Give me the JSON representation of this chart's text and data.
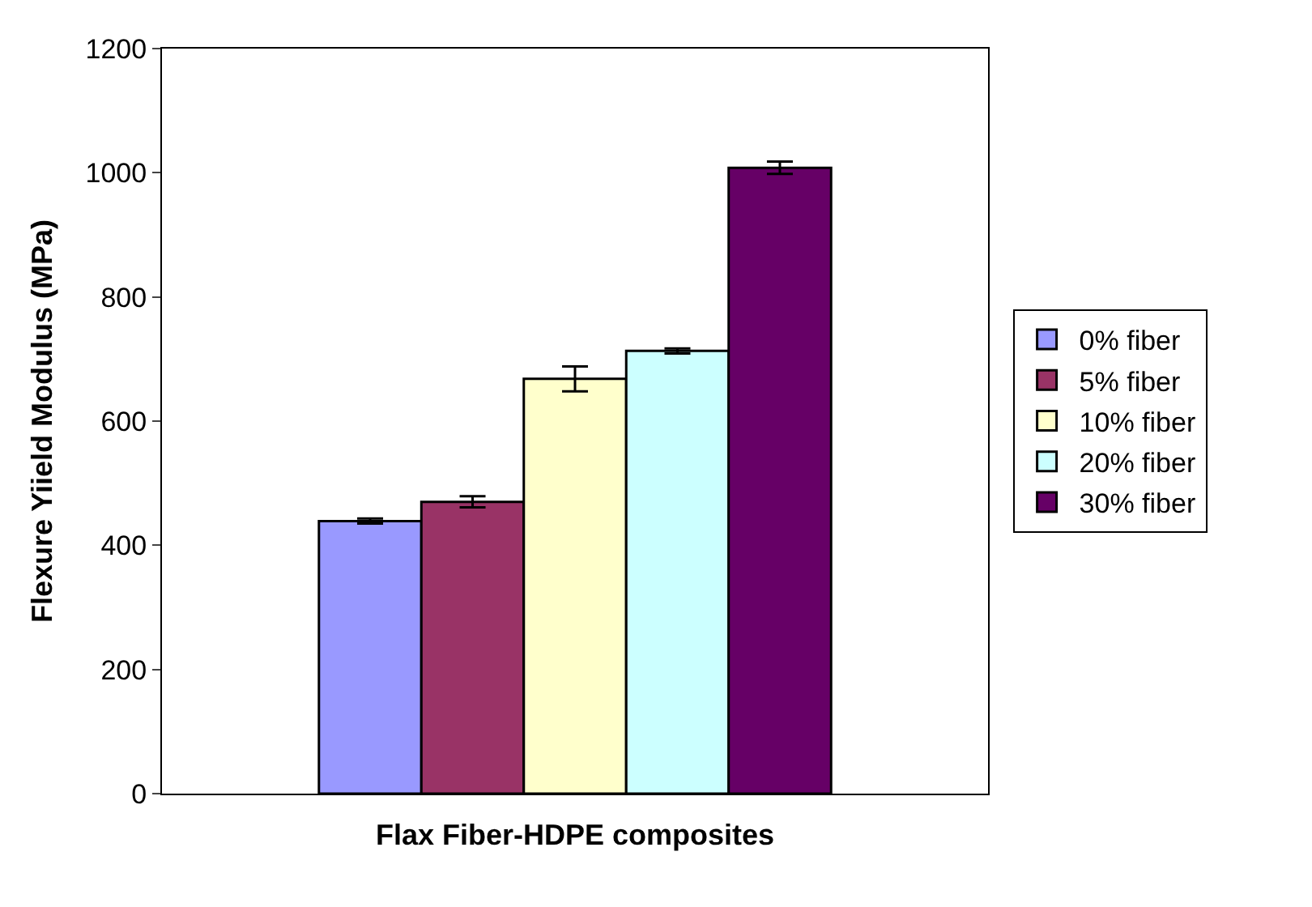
{
  "chart_data": {
    "type": "bar",
    "xlabel": "Flax Fiber-HDPE composites",
    "ylabel": "Flexure Yiield Modulus (MPa)",
    "categories": [
      null
    ],
    "series": [
      {
        "name": "0% fiber",
        "color": "#9999ff",
        "values": [
          439
        ],
        "errors": [
          4
        ]
      },
      {
        "name": "5% fiber",
        "color": "#993366",
        "values": [
          470
        ],
        "errors": [
          9
        ]
      },
      {
        "name": "10% fiber",
        "color": "#ffffcc",
        "values": [
          668
        ],
        "errors": [
          20
        ]
      },
      {
        "name": "20% fiber",
        "color": "#ccffff",
        "values": [
          713
        ],
        "errors": [
          4
        ]
      },
      {
        "name": "30% fiber",
        "color": "#660066",
        "values": [
          1008
        ],
        "errors": [
          10
        ]
      }
    ],
    "ylim": [
      0,
      1200
    ],
    "yticks": [
      0,
      200,
      400,
      600,
      800,
      1000,
      1200
    ],
    "grid": false,
    "legend": "right"
  }
}
